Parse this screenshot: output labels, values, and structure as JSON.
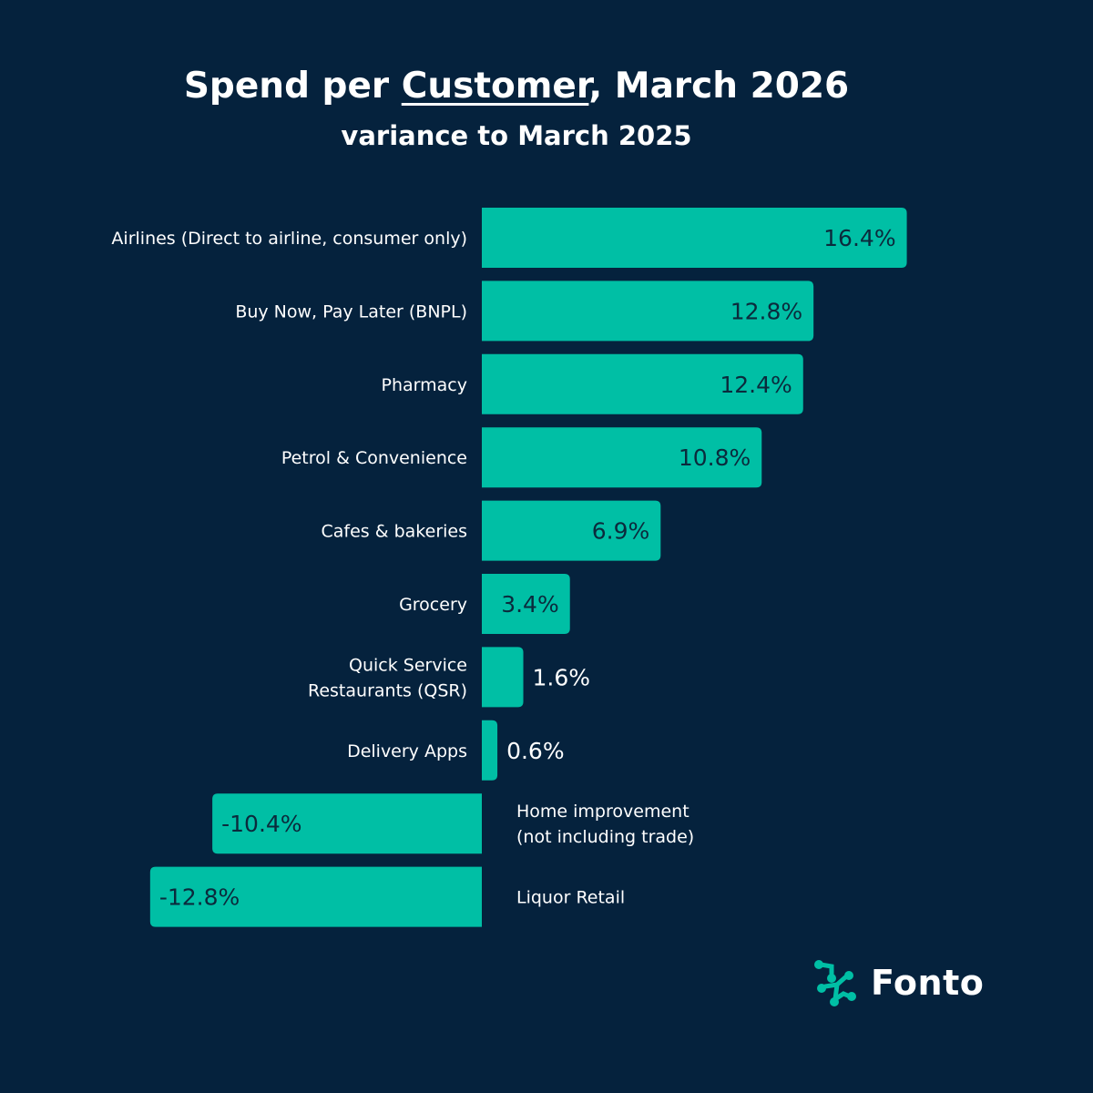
{
  "chart_data": {
    "type": "bar",
    "orientation": "horizontal",
    "title_parts": [
      "Spend per ",
      "Customer",
      ", March 2026"
    ],
    "subtitle": "variance to March 2025",
    "categories": [
      [
        "Airlines (Direct to airline, consumer only)"
      ],
      [
        "Buy Now, Pay Later (BNPL)"
      ],
      [
        "Pharmacy"
      ],
      [
        "Petrol & Convenience"
      ],
      [
        "Cafes & bakeries"
      ],
      [
        "Grocery"
      ],
      [
        "Quick Service",
        "Restaurants (QSR)"
      ],
      [
        "Delivery Apps"
      ],
      [
        "Home improvement",
        "(not including trade)"
      ],
      [
        "Liquor Retail"
      ]
    ],
    "values": [
      16.4,
      12.8,
      12.4,
      10.8,
      6.9,
      3.4,
      1.6,
      0.6,
      -10.4,
      -12.8
    ],
    "value_labels": [
      "16.4%",
      "12.8%",
      "12.4%",
      "10.8%",
      "6.9%",
      "3.4%",
      "1.6%",
      "0.6%",
      "-10.4%",
      "-12.8%"
    ],
    "unit": "%",
    "xlim": [
      -12.8,
      16.4
    ],
    "bar_color": "#00bfa5"
  },
  "colors": {
    "background": "#05223d",
    "bar": "#00bfa5",
    "text": "#ffffff",
    "label_in_bar": "#0b2a3c"
  },
  "brand": {
    "name": "Fonto",
    "logo_icon": "molecule-network-icon"
  }
}
